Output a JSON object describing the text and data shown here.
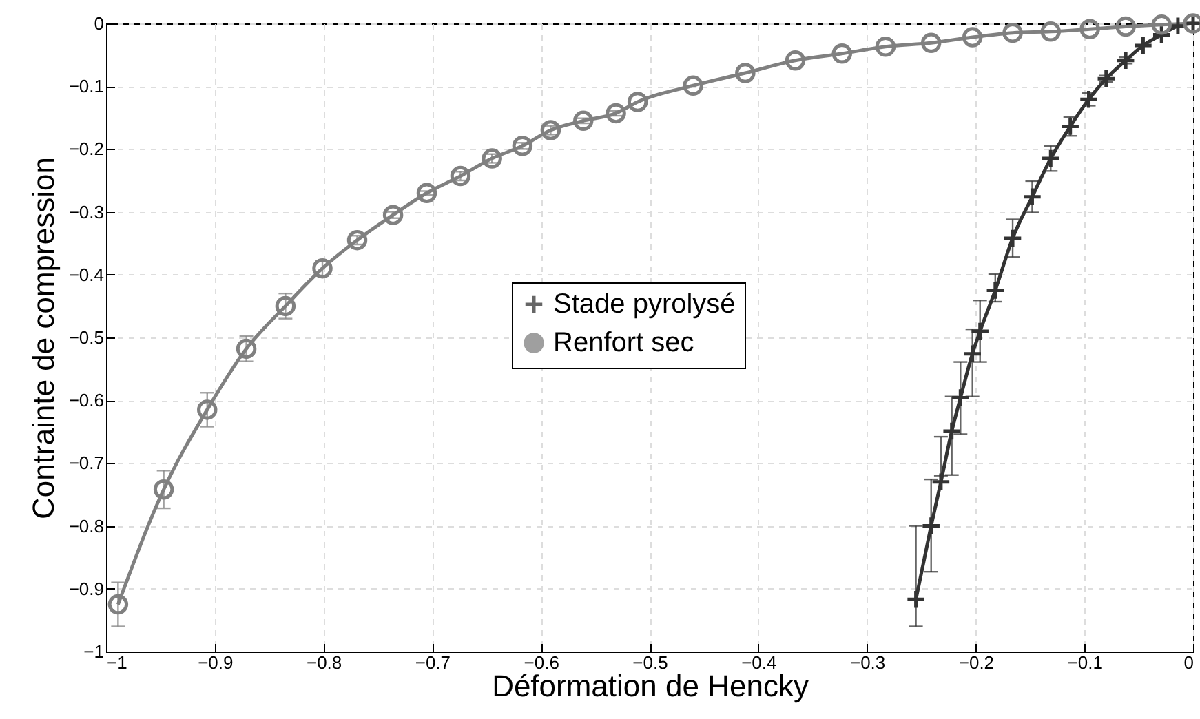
{
  "chart_data": {
    "type": "line",
    "xlabel": "Déformation de Hencky",
    "ylabel": "Contrainte de compression",
    "xlim": [
      -1,
      0
    ],
    "xticks": [
      -1,
      -0.9,
      -0.8,
      -0.7,
      -0.6,
      -0.5,
      -0.4,
      -0.3,
      -0.2,
      -0.1,
      0
    ],
    "ylim": [
      -1,
      0
    ],
    "yticks": [
      -1,
      -0.9,
      -0.8,
      -0.7,
      -0.6,
      -0.5,
      -0.4,
      -0.3,
      -0.2,
      -0.1,
      0
    ],
    "grid": true,
    "legend": "center",
    "series": [
      {
        "name": "Stade pyrolysé",
        "color": "#333333",
        "marker": "cross",
        "x": [
          -0.255,
          -0.241,
          -0.232,
          -0.222,
          -0.214,
          -0.203,
          -0.196,
          -0.182,
          -0.166,
          -0.148,
          -0.131,
          -0.113,
          -0.096,
          -0.08,
          -0.062,
          -0.046,
          -0.029,
          -0.014,
          0
        ],
        "values": [
          -0.917,
          -0.8,
          -0.73,
          -0.649,
          -0.596,
          -0.526,
          -0.49,
          -0.425,
          -0.342,
          -0.276,
          -0.215,
          -0.164,
          -0.121,
          -0.088,
          -0.059,
          -0.035,
          -0.018,
          -0.004,
          0
        ],
        "errors": [
          [
            -0.96,
            -0.8
          ],
          [
            -0.873,
            -0.726
          ],
          [
            -0.72,
            -0.658
          ],
          [
            -0.719,
            -0.594
          ],
          [
            -0.654,
            -0.539
          ],
          [
            -0.594,
            -0.487
          ],
          [
            -0.539,
            -0.441
          ],
          [
            -0.443,
            -0.399
          ],
          0.03,
          0.025,
          0.02,
          0.015,
          0.01,
          0.005,
          0.005,
          null,
          null,
          null,
          null
        ]
      },
      {
        "name": "Renfort sec",
        "color": "#808080",
        "marker": "circle",
        "x": [
          -0.989,
          -0.947,
          -0.907,
          -0.871,
          -0.835,
          -0.801,
          -0.769,
          -0.736,
          -0.705,
          -0.674,
          -0.645,
          -0.617,
          -0.591,
          -0.561,
          -0.531,
          -0.511,
          -0.46,
          -0.412,
          -0.366,
          -0.323,
          -0.283,
          -0.241,
          -0.203,
          -0.166,
          -0.131,
          -0.095,
          -0.062,
          -0.029,
          0
        ],
        "values": [
          -0.925,
          -0.742,
          -0.615,
          -0.518,
          -0.45,
          -0.39,
          -0.345,
          -0.305,
          -0.27,
          -0.243,
          -0.215,
          -0.195,
          -0.17,
          -0.155,
          -0.143,
          -0.125,
          -0.099,
          -0.079,
          -0.059,
          -0.048,
          -0.037,
          -0.031,
          -0.022,
          -0.015,
          -0.013,
          -0.009,
          -0.005,
          -0.002,
          0
        ],
        "errors": [
          0.035,
          0.03,
          0.027,
          0.02,
          0.02,
          0.012,
          0.007,
          0.005,
          0.003,
          0.007,
          0.007,
          0.005,
          0.007,
          0.004,
          0.004,
          null,
          null,
          null,
          null,
          null,
          null,
          null,
          null,
          null,
          null,
          null,
          null,
          null,
          null
        ]
      }
    ]
  }
}
